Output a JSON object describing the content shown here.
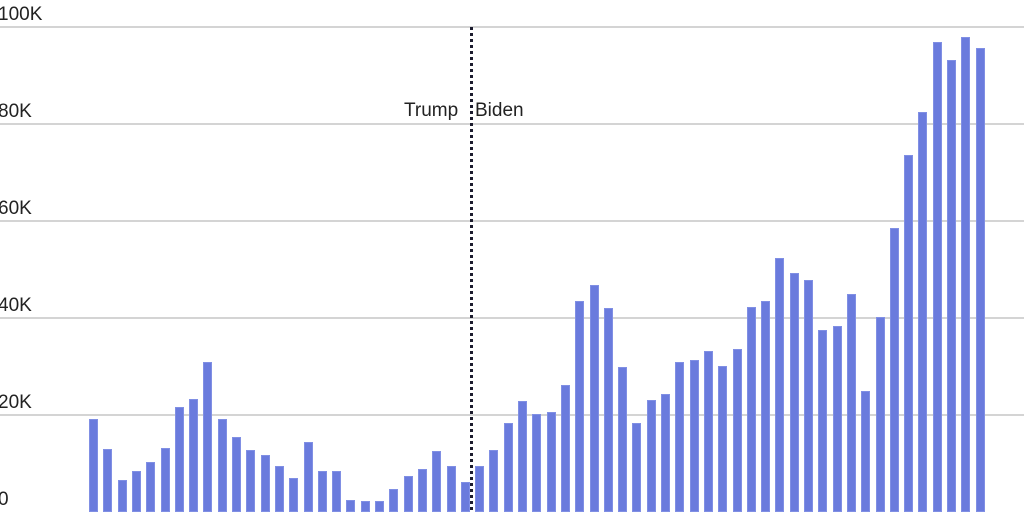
{
  "chart_data": {
    "type": "bar",
    "title": "",
    "xlabel": "",
    "ylabel": "",
    "ylim": [
      0,
      100000
    ],
    "grid": true,
    "legend": null,
    "bar_color": "#6a7bdd",
    "yticks": [
      {
        "value": 0,
        "label": "0"
      },
      {
        "value": 20000,
        "label": "20K"
      },
      {
        "value": 40000,
        "label": "40K"
      },
      {
        "value": 60000,
        "label": "60K"
      },
      {
        "value": 80000,
        "label": "80K"
      },
      {
        "value": 100000,
        "label": "100K"
      }
    ],
    "annotations": {
      "divider_after_index": 26,
      "left_label": "Trump",
      "right_label": "Biden"
    },
    "values": [
      19200,
      13000,
      6600,
      8500,
      10300,
      13200,
      21700,
      23300,
      30900,
      19200,
      15500,
      12800,
      11700,
      9500,
      7000,
      14400,
      8500,
      8500,
      2500,
      2300,
      2300,
      4700,
      7400,
      8900,
      12600,
      9500,
      6200,
      9500,
      12800,
      18400,
      22900,
      20200,
      20600,
      26200,
      43500,
      46800,
      42100,
      29900,
      18400,
      23100,
      24300,
      30900,
      31300,
      33200,
      30100,
      33600,
      42300,
      43500,
      52400,
      49300,
      47800,
      37500,
      38400,
      45000,
      25000,
      40200,
      58600,
      73600,
      82500,
      96900,
      93200,
      97900,
      95700
    ]
  }
}
